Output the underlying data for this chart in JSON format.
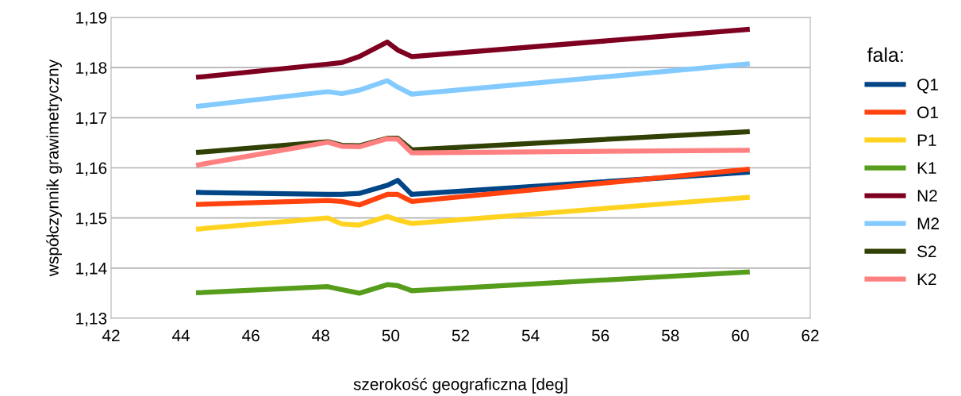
{
  "chart_data": {
    "type": "line",
    "xlabel": "szerokość geograficzna [deg]",
    "ylabel": "współczynnik grawimetryczny",
    "legend_title": "fala:",
    "legend": "right",
    "grid": "y",
    "line_style": "solid",
    "marker": "none",
    "x": [
      44.5,
      48.2,
      48.6,
      49.1,
      49.9,
      50.2,
      50.6,
      60.2
    ],
    "xlim": [
      42,
      62
    ],
    "xticks": [
      42,
      44,
      46,
      48,
      50,
      52,
      54,
      56,
      58,
      60,
      62
    ],
    "ylim": [
      1.13,
      1.19
    ],
    "yticks": [
      {
        "value": 1.13,
        "label": "1,13"
      },
      {
        "value": 1.14,
        "label": "1,14"
      },
      {
        "value": 1.15,
        "label": "1,15"
      },
      {
        "value": 1.16,
        "label": "1,16"
      },
      {
        "value": 1.17,
        "label": "1,17"
      },
      {
        "value": 1.18,
        "label": "1,18"
      },
      {
        "value": 1.19,
        "label": "1,19"
      }
    ],
    "series": [
      {
        "name": "Q1",
        "color": "#004586",
        "values": [
          1.1551,
          1.1547,
          1.1547,
          1.1549,
          1.1565,
          1.1575,
          1.1547,
          1.1591
        ]
      },
      {
        "name": "O1",
        "color": "#ff420e",
        "values": [
          1.1527,
          1.1535,
          1.1533,
          1.1526,
          1.1547,
          1.1547,
          1.1533,
          1.1597
        ]
      },
      {
        "name": "P1",
        "color": "#ffd320",
        "values": [
          1.1478,
          1.15,
          1.1488,
          1.1486,
          1.1503,
          1.1496,
          1.1489,
          1.1541
        ]
      },
      {
        "name": "K1",
        "color": "#579d1c",
        "values": [
          1.1351,
          1.1363,
          1.1357,
          1.135,
          1.1367,
          1.1365,
          1.1355,
          1.1392
        ]
      },
      {
        "name": "N2",
        "color": "#7e0021",
        "values": [
          1.1781,
          1.1807,
          1.181,
          1.1822,
          1.1851,
          1.1835,
          1.1822,
          1.1876
        ]
      },
      {
        "name": "M2",
        "color": "#83caff",
        "values": [
          1.1723,
          1.1752,
          1.1748,
          1.1755,
          1.1774,
          1.1761,
          1.1747,
          1.1807
        ]
      },
      {
        "name": "S2",
        "color": "#314004",
        "values": [
          1.1631,
          1.1652,
          1.1645,
          1.1644,
          1.1659,
          1.1659,
          1.1636,
          1.1672
        ]
      },
      {
        "name": "K2",
        "color": "#ff8080",
        "values": [
          1.1606,
          1.1651,
          1.1643,
          1.1642,
          1.1658,
          1.1657,
          1.163,
          1.1635
        ]
      }
    ]
  }
}
